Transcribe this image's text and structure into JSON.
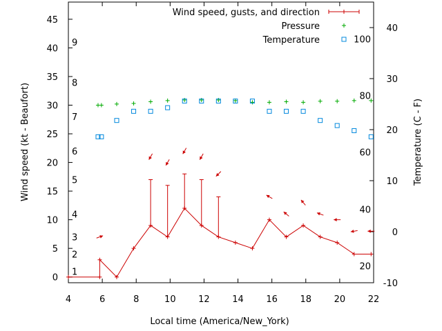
{
  "chart_data": {
    "type": "line",
    "xlabel": "Local time (America/New_York)",
    "ylabel": "Wind speed (kt - Beaufort)",
    "y2label": "Temperature (C - F)",
    "xlim": [
      4,
      22
    ],
    "ylim": [
      -1,
      48
    ],
    "y2lim": [
      -10,
      45
    ],
    "grid": false,
    "legend_position": "top-right",
    "x_ticks": [
      "4",
      "6",
      "8",
      "10",
      "12",
      "14",
      "16",
      "18",
      "20",
      "22"
    ],
    "y_ticks": [
      "0",
      "5",
      "10",
      "15",
      "20",
      "25",
      "30",
      "35",
      "40",
      "45"
    ],
    "y2_ticks": [
      "-10",
      "0",
      "10",
      "20",
      "30",
      "40"
    ],
    "beaufort_labels": [
      {
        "text": "1",
        "y": 1
      },
      {
        "text": "2",
        "y": 4
      },
      {
        "text": "3",
        "y": 7
      },
      {
        "text": "4",
        "y": 11
      },
      {
        "text": "5",
        "y": 17
      },
      {
        "text": "6",
        "y": 22
      },
      {
        "text": "7",
        "y": 28
      },
      {
        "text": "8",
        "y": 34
      },
      {
        "text": "9",
        "y": 41
      }
    ],
    "fahrenheit_labels": [
      {
        "text": "20",
        "y2": -6.7
      },
      {
        "text": "40",
        "y2": 4.4
      },
      {
        "text": "60",
        "y2": 15.6
      },
      {
        "text": "80",
        "y2": 26.7
      },
      {
        "text": "100",
        "y2": 37.8
      }
    ],
    "series": [
      {
        "name": "Wind speed, gusts, and direction",
        "color": "#cc0000",
        "marker": "plus-with-errorbar",
        "points": [
          {
            "x": 4.0,
            "y": 0,
            "gust": 0
          },
          {
            "x": 5.85,
            "y": 0,
            "gust": 0
          },
          {
            "x": 5.85,
            "y": 3,
            "gust": 3
          },
          {
            "x": 6.85,
            "y": 0,
            "gust": 0
          },
          {
            "x": 7.85,
            "y": 5,
            "gust": 5
          },
          {
            "x": 8.85,
            "y": 9,
            "gust": 17
          },
          {
            "x": 9.85,
            "y": 7,
            "gust": 16
          },
          {
            "x": 10.85,
            "y": 12,
            "gust": 18
          },
          {
            "x": 11.85,
            "y": 9,
            "gust": 17
          },
          {
            "x": 12.85,
            "y": 7,
            "gust": 14
          },
          {
            "x": 13.85,
            "y": 6,
            "gust": 6
          },
          {
            "x": 14.85,
            "y": 5,
            "gust": 5
          },
          {
            "x": 15.85,
            "y": 10,
            "gust": 10
          },
          {
            "x": 16.85,
            "y": 7,
            "gust": 7
          },
          {
            "x": 17.85,
            "y": 9,
            "gust": 9
          },
          {
            "x": 18.85,
            "y": 7,
            "gust": 7
          },
          {
            "x": 19.85,
            "y": 6,
            "gust": 6
          },
          {
            "x": 20.85,
            "y": 4,
            "gust": 4
          },
          {
            "x": 21.85,
            "y": 4,
            "gust": 4
          }
        ],
        "direction_arrows": [
          {
            "x": 5.85,
            "y": 7,
            "dir_deg": 250
          },
          {
            "x": 8.85,
            "y": 21,
            "dir_deg": 30
          },
          {
            "x": 9.85,
            "y": 20,
            "dir_deg": 30
          },
          {
            "x": 10.85,
            "y": 22,
            "dir_deg": 30
          },
          {
            "x": 11.85,
            "y": 21,
            "dir_deg": 30
          },
          {
            "x": 12.85,
            "y": 18,
            "dir_deg": 45
          },
          {
            "x": 15.85,
            "y": 14,
            "dir_deg": 120
          },
          {
            "x": 16.85,
            "y": 11,
            "dir_deg": 130
          },
          {
            "x": 17.85,
            "y": 13,
            "dir_deg": 140
          },
          {
            "x": 18.85,
            "y": 11,
            "dir_deg": 110
          },
          {
            "x": 19.85,
            "y": 10,
            "dir_deg": 90
          },
          {
            "x": 20.85,
            "y": 8,
            "dir_deg": 80
          },
          {
            "x": 21.85,
            "y": 8,
            "dir_deg": 90
          }
        ]
      },
      {
        "name": "Pressure",
        "color": "#00aa00",
        "marker": "plus",
        "points": [
          {
            "x": 5.75,
            "y": 30.0
          },
          {
            "x": 5.95,
            "y": 30.0
          },
          {
            "x": 6.85,
            "y": 30.2
          },
          {
            "x": 7.85,
            "y": 30.3
          },
          {
            "x": 8.85,
            "y": 30.6
          },
          {
            "x": 9.85,
            "y": 30.8
          },
          {
            "x": 10.85,
            "y": 30.9
          },
          {
            "x": 11.85,
            "y": 30.9
          },
          {
            "x": 12.85,
            "y": 30.9
          },
          {
            "x": 13.85,
            "y": 30.8
          },
          {
            "x": 14.85,
            "y": 30.5
          },
          {
            "x": 15.85,
            "y": 30.5
          },
          {
            "x": 16.85,
            "y": 30.6
          },
          {
            "x": 17.85,
            "y": 30.5
          },
          {
            "x": 18.85,
            "y": 30.7
          },
          {
            "x": 19.85,
            "y": 30.7
          },
          {
            "x": 20.85,
            "y": 30.8
          },
          {
            "x": 21.85,
            "y": 30.8
          }
        ]
      },
      {
        "name": "Temperature",
        "color": "#0088dd",
        "marker": "square",
        "axis": "y2",
        "points": [
          {
            "x": 5.75,
            "y2": 18.6
          },
          {
            "x": 5.95,
            "y2": 18.6
          },
          {
            "x": 6.85,
            "y2": 21.8
          },
          {
            "x": 7.85,
            "y2": 23.6
          },
          {
            "x": 8.85,
            "y2": 23.6
          },
          {
            "x": 9.85,
            "y2": 24.3
          },
          {
            "x": 10.85,
            "y2": 25.6
          },
          {
            "x": 11.85,
            "y2": 25.6
          },
          {
            "x": 12.85,
            "y2": 25.6
          },
          {
            "x": 13.85,
            "y2": 25.6
          },
          {
            "x": 14.85,
            "y2": 25.6
          },
          {
            "x": 15.85,
            "y2": 23.6
          },
          {
            "x": 16.85,
            "y2": 23.6
          },
          {
            "x": 17.85,
            "y2": 23.6
          },
          {
            "x": 18.85,
            "y2": 21.8
          },
          {
            "x": 19.85,
            "y2": 20.8
          },
          {
            "x": 20.85,
            "y2": 19.8
          },
          {
            "x": 21.85,
            "y2": 18.6
          }
        ]
      }
    ]
  }
}
